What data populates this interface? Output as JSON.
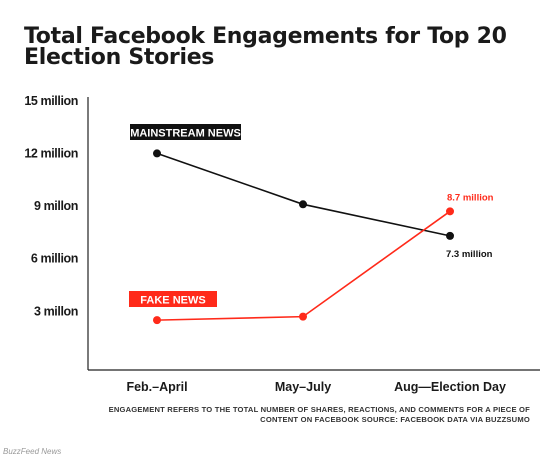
{
  "credit": "BuzzFeed News",
  "colors": {
    "mainstream": "#111111",
    "fake": "#ff2a1a",
    "axis": "#222222"
  },
  "chart_data": {
    "type": "line",
    "title": "Total Facebook Engagements for Top 20 Election Stories",
    "categories": [
      "Feb.–April",
      "May–July",
      "Aug—Election Day"
    ],
    "ylim": [
      0,
      15
    ],
    "yticks": [
      {
        "value": 3,
        "label": "3 millon"
      },
      {
        "value": 6,
        "label": "6 million"
      },
      {
        "value": 9,
        "label": "9 millon"
      },
      {
        "value": 12,
        "label": "12 million"
      },
      {
        "value": 15,
        "label": "15 million"
      }
    ],
    "grid": false,
    "series": [
      {
        "name": "MAINSTREAM NEWS",
        "values": [
          12,
          9.1,
          7.3
        ],
        "color": "#111111",
        "end_label": "7.3 million"
      },
      {
        "name": "FAKE NEWS",
        "values": [
          2.5,
          2.7,
          8.7
        ],
        "color": "#ff2a1a",
        "end_label": "8.7 million"
      }
    ],
    "footnote": "ENGAGEMENT REFERS TO THE TOTAL NUMBER OF SHARES, REACTIONS, AND COMMENTS FOR A PIECE OF CONTENT ON FACEBOOK SOURCE: FACEBOOK DATA VIA BUZZSUMO"
  }
}
